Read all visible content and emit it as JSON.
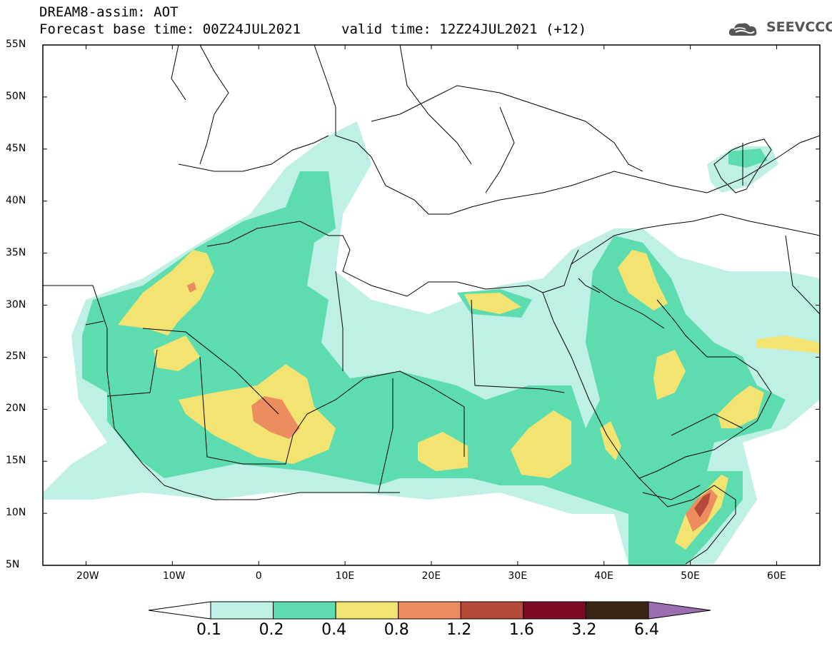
{
  "header": {
    "title": "DREAM8-assim: AOT",
    "base_time": "Forecast base time: 00Z24JUL2021",
    "valid_time": "valid time: 12Z24JUL2021 (+12)"
  },
  "logo": {
    "text": "SEEVCCC",
    "icon": "cloud-logo-icon"
  },
  "map": {
    "lat_labels": [
      "55N",
      "50N",
      "45N",
      "40N",
      "35N",
      "30N",
      "25N",
      "20N",
      "15N",
      "10N",
      "5N"
    ],
    "lon_labels": [
      "20W",
      "10W",
      "0",
      "10E",
      "20E",
      "30E",
      "40E",
      "50E",
      "60E"
    ],
    "lat_range": [
      5,
      55
    ],
    "lon_range": [
      -25,
      65
    ]
  },
  "colorbar": {
    "labels": [
      "0.1",
      "0.2",
      "0.4",
      "0.8",
      "1.2",
      "1.6",
      "3.2",
      "6.4"
    ],
    "colors": [
      "#ffffff",
      "#bff0e6",
      "#5ddcb0",
      "#f3e472",
      "#ec8d60",
      "#b54a38",
      "#7e0a26",
      "#3b2414",
      "#9a6fb0"
    ]
  }
}
